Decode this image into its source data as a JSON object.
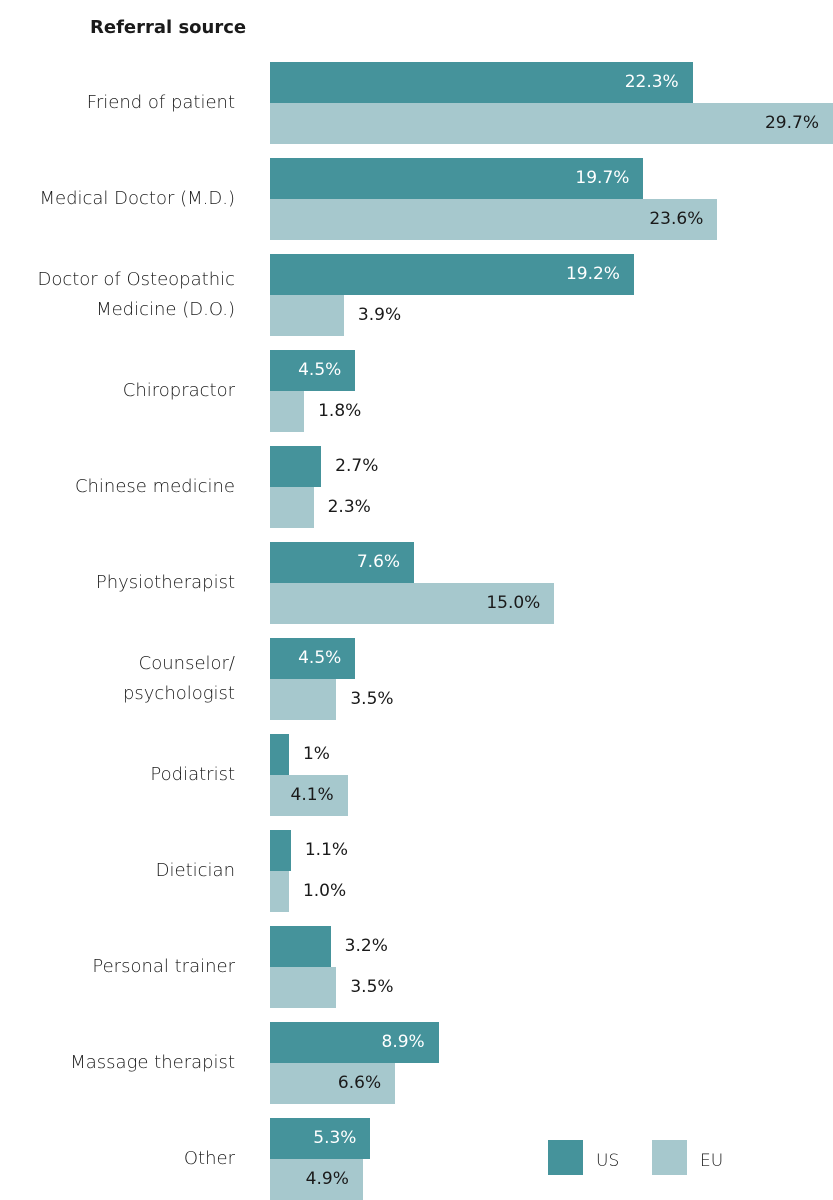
{
  "chart_data": {
    "type": "bar",
    "orientation": "horizontal",
    "title": "Referral source",
    "categories": [
      "Friend of patient",
      "Medical Doctor (M.D.)",
      "Doctor of Osteopathic\nMedicine (D.O.)",
      "Chiropractor",
      "Chinese medicine",
      "Physiotherapist",
      "Counselor/\npsychologist",
      "Podiatrist",
      "Dietician",
      "Personal trainer",
      "Massage therapist",
      "Other"
    ],
    "series": [
      {
        "name": "US",
        "color": "#45939b",
        "values": [
          22.3,
          19.7,
          19.2,
          4.5,
          2.7,
          7.6,
          4.5,
          1,
          1.1,
          3.2,
          8.9,
          5.3
        ],
        "value_labels": [
          "22.3%",
          "19.7%",
          "19.2%",
          "4.5%",
          "2.7%",
          "7.6%",
          "4.5%",
          "1%",
          "1.1%",
          "3.2%",
          "8.9%",
          "5.3%"
        ]
      },
      {
        "name": "EU",
        "color": "#a6c8cd",
        "values": [
          29.7,
          23.6,
          3.9,
          1.8,
          2.3,
          15.0,
          3.5,
          4.1,
          1.0,
          3.5,
          6.6,
          4.9
        ],
        "value_labels": [
          "29.7%",
          "23.6%",
          "3.9%",
          "1.8%",
          "2.3%",
          "15.0%",
          "3.5%",
          "4.1%",
          "1.0%",
          "3.5%",
          "6.6%",
          "4.9%"
        ]
      }
    ],
    "legend": "bottom-right"
  }
}
